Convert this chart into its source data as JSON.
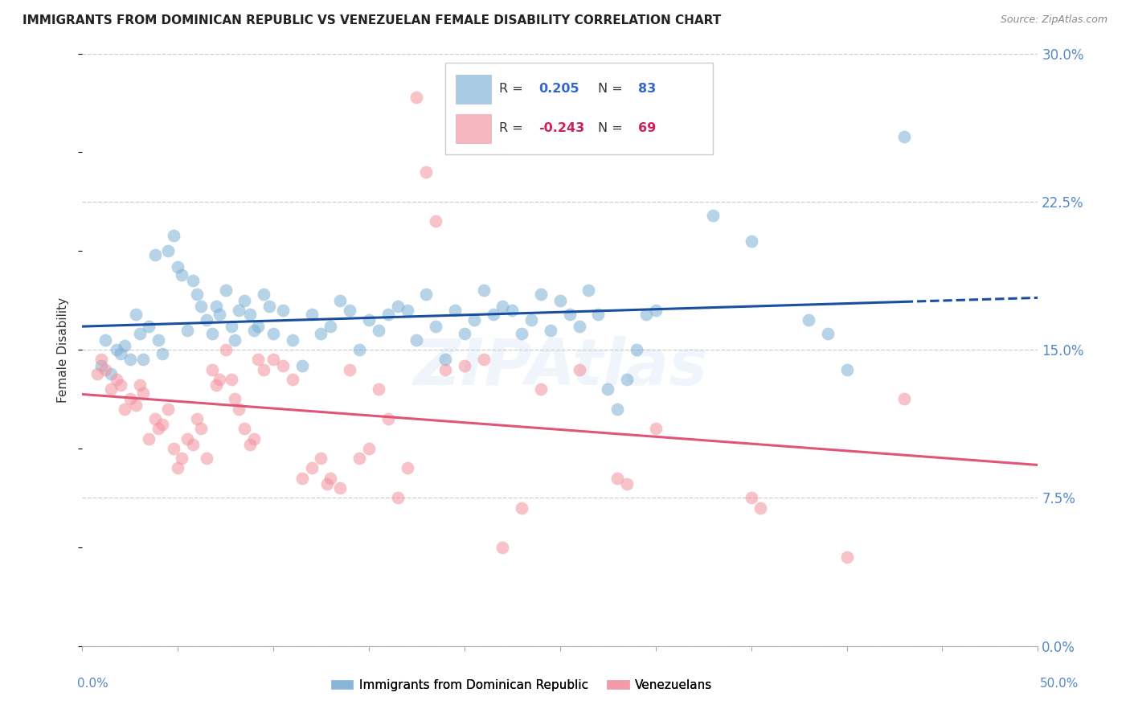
{
  "title": "IMMIGRANTS FROM DOMINICAN REPUBLIC VS VENEZUELAN FEMALE DISABILITY CORRELATION CHART",
  "source": "Source: ZipAtlas.com",
  "ylabel": "Female Disability",
  "ytick_labels": [
    "0.0%",
    "7.5%",
    "15.0%",
    "22.5%",
    "30.0%"
  ],
  "ytick_values": [
    0.0,
    7.5,
    15.0,
    22.5,
    30.0
  ],
  "xlim": [
    0.0,
    50.0
  ],
  "ylim": [
    0.0,
    30.0
  ],
  "r1": "0.205",
  "n1": "83",
  "r2": "-0.243",
  "n2": "69",
  "legend_label1": "Immigrants from Dominican Republic",
  "legend_label2": "Venezuelans",
  "watermark": "ZIPAtlas",
  "blue_color": "#7bafd4",
  "pink_color": "#f4919e",
  "blue_line_color": "#1a4fa0",
  "pink_line_color": "#e05577",
  "blue_dots": [
    [
      1.0,
      14.2
    ],
    [
      1.2,
      15.5
    ],
    [
      1.5,
      13.8
    ],
    [
      1.8,
      15.0
    ],
    [
      2.0,
      14.8
    ],
    [
      2.2,
      15.2
    ],
    [
      2.5,
      14.5
    ],
    [
      2.8,
      16.8
    ],
    [
      3.0,
      15.8
    ],
    [
      3.2,
      14.5
    ],
    [
      3.5,
      16.2
    ],
    [
      3.8,
      19.8
    ],
    [
      4.0,
      15.5
    ],
    [
      4.2,
      14.8
    ],
    [
      4.5,
      20.0
    ],
    [
      4.8,
      20.8
    ],
    [
      5.0,
      19.2
    ],
    [
      5.2,
      18.8
    ],
    [
      5.5,
      16.0
    ],
    [
      5.8,
      18.5
    ],
    [
      6.0,
      17.8
    ],
    [
      6.2,
      17.2
    ],
    [
      6.5,
      16.5
    ],
    [
      6.8,
      15.8
    ],
    [
      7.0,
      17.2
    ],
    [
      7.2,
      16.8
    ],
    [
      7.5,
      18.0
    ],
    [
      7.8,
      16.2
    ],
    [
      8.0,
      15.5
    ],
    [
      8.2,
      17.0
    ],
    [
      8.5,
      17.5
    ],
    [
      8.8,
      16.8
    ],
    [
      9.0,
      16.0
    ],
    [
      9.2,
      16.2
    ],
    [
      9.5,
      17.8
    ],
    [
      9.8,
      17.2
    ],
    [
      10.0,
      15.8
    ],
    [
      10.5,
      17.0
    ],
    [
      11.0,
      15.5
    ],
    [
      11.5,
      14.2
    ],
    [
      12.0,
      16.8
    ],
    [
      12.5,
      15.8
    ],
    [
      13.0,
      16.2
    ],
    [
      13.5,
      17.5
    ],
    [
      14.0,
      17.0
    ],
    [
      14.5,
      15.0
    ],
    [
      15.0,
      16.5
    ],
    [
      15.5,
      16.0
    ],
    [
      16.0,
      16.8
    ],
    [
      16.5,
      17.2
    ],
    [
      17.0,
      17.0
    ],
    [
      17.5,
      15.5
    ],
    [
      18.0,
      17.8
    ],
    [
      18.5,
      16.2
    ],
    [
      19.0,
      14.5
    ],
    [
      19.5,
      17.0
    ],
    [
      20.0,
      15.8
    ],
    [
      20.5,
      16.5
    ],
    [
      21.0,
      18.0
    ],
    [
      21.5,
      16.8
    ],
    [
      22.0,
      17.2
    ],
    [
      22.5,
      17.0
    ],
    [
      23.0,
      15.8
    ],
    [
      23.5,
      16.5
    ],
    [
      24.0,
      17.8
    ],
    [
      24.5,
      16.0
    ],
    [
      25.0,
      17.5
    ],
    [
      25.5,
      16.8
    ],
    [
      26.0,
      16.2
    ],
    [
      26.5,
      18.0
    ],
    [
      27.0,
      16.8
    ],
    [
      27.5,
      13.0
    ],
    [
      28.0,
      12.0
    ],
    [
      28.5,
      13.5
    ],
    [
      29.0,
      15.0
    ],
    [
      29.5,
      16.8
    ],
    [
      30.0,
      17.0
    ],
    [
      33.0,
      21.8
    ],
    [
      35.0,
      20.5
    ],
    [
      38.0,
      16.5
    ],
    [
      39.0,
      15.8
    ],
    [
      40.0,
      14.0
    ],
    [
      43.0,
      25.8
    ]
  ],
  "pink_dots": [
    [
      0.8,
      13.8
    ],
    [
      1.0,
      14.5
    ],
    [
      1.2,
      14.0
    ],
    [
      1.5,
      13.0
    ],
    [
      1.8,
      13.5
    ],
    [
      2.0,
      13.2
    ],
    [
      2.2,
      12.0
    ],
    [
      2.5,
      12.5
    ],
    [
      2.8,
      12.2
    ],
    [
      3.0,
      13.2
    ],
    [
      3.2,
      12.8
    ],
    [
      3.5,
      10.5
    ],
    [
      3.8,
      11.5
    ],
    [
      4.0,
      11.0
    ],
    [
      4.2,
      11.2
    ],
    [
      4.5,
      12.0
    ],
    [
      4.8,
      10.0
    ],
    [
      5.0,
      9.0
    ],
    [
      5.2,
      9.5
    ],
    [
      5.5,
      10.5
    ],
    [
      5.8,
      10.2
    ],
    [
      6.0,
      11.5
    ],
    [
      6.2,
      11.0
    ],
    [
      6.5,
      9.5
    ],
    [
      6.8,
      14.0
    ],
    [
      7.0,
      13.2
    ],
    [
      7.2,
      13.5
    ],
    [
      7.5,
      15.0
    ],
    [
      7.8,
      13.5
    ],
    [
      8.0,
      12.5
    ],
    [
      8.2,
      12.0
    ],
    [
      8.5,
      11.0
    ],
    [
      8.8,
      10.2
    ],
    [
      9.0,
      10.5
    ],
    [
      9.2,
      14.5
    ],
    [
      9.5,
      14.0
    ],
    [
      10.0,
      14.5
    ],
    [
      10.5,
      14.2
    ],
    [
      11.0,
      13.5
    ],
    [
      11.5,
      8.5
    ],
    [
      12.0,
      9.0
    ],
    [
      12.5,
      9.5
    ],
    [
      12.8,
      8.2
    ],
    [
      13.0,
      8.5
    ],
    [
      13.5,
      8.0
    ],
    [
      14.0,
      14.0
    ],
    [
      14.5,
      9.5
    ],
    [
      15.0,
      10.0
    ],
    [
      15.5,
      13.0
    ],
    [
      16.0,
      11.5
    ],
    [
      16.5,
      7.5
    ],
    [
      17.0,
      9.0
    ],
    [
      17.5,
      27.8
    ],
    [
      18.0,
      24.0
    ],
    [
      18.5,
      21.5
    ],
    [
      19.0,
      14.0
    ],
    [
      20.0,
      14.2
    ],
    [
      21.0,
      14.5
    ],
    [
      22.0,
      5.0
    ],
    [
      23.0,
      7.0
    ],
    [
      24.0,
      13.0
    ],
    [
      26.0,
      14.0
    ],
    [
      28.0,
      8.5
    ],
    [
      28.5,
      8.2
    ],
    [
      30.0,
      11.0
    ],
    [
      35.0,
      7.5
    ],
    [
      35.5,
      7.0
    ],
    [
      40.0,
      4.5
    ],
    [
      43.0,
      12.5
    ]
  ]
}
